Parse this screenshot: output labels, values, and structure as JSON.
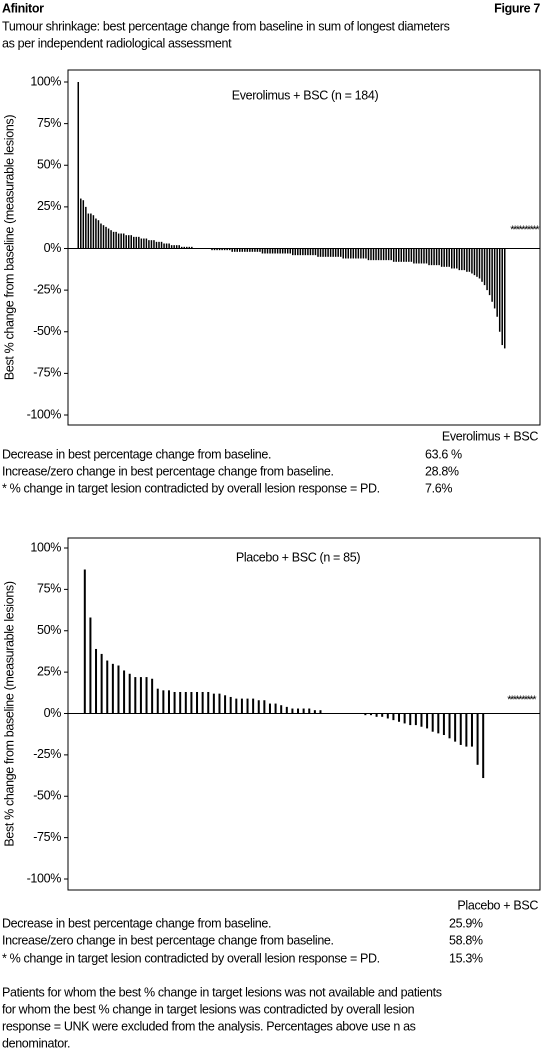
{
  "header": {
    "left": "Afinitor",
    "right": "Figure 7"
  },
  "title": [
    "Tumour shrinkage: best percentage change from baseline in sum of longest diameters",
    "as per independent radiological assessment"
  ],
  "chart_data": [
    {
      "type": "bar",
      "title": "Everolimus + BSC (n = 184)",
      "y_label": "Best % change from baseline (measurable lesions)",
      "ylim": [
        -100,
        100
      ],
      "yticks": [
        {
          "value": 100,
          "label": "100%"
        },
        {
          "value": 75,
          "label": "75%"
        },
        {
          "value": 50,
          "label": "50%"
        },
        {
          "value": 25,
          "label": "25%"
        },
        {
          "value": 0,
          "label": "0%"
        },
        {
          "value": -25,
          "label": "-25%"
        },
        {
          "value": -50,
          "label": "-50%"
        },
        {
          "value": -75,
          "label": "-75%"
        },
        {
          "value": -100,
          "label": "-100%"
        }
      ],
      "color": "#000000",
      "values": [
        100,
        30,
        29,
        25,
        21,
        21,
        20,
        18,
        17,
        15,
        14,
        13,
        12,
        11,
        10,
        10,
        9,
        9,
        9,
        8,
        8,
        8,
        7,
        7,
        7,
        6,
        6,
        6,
        5,
        5,
        5,
        4,
        4,
        4,
        3,
        3,
        3,
        2,
        2,
        2,
        2,
        1,
        1,
        1,
        1,
        1,
        0,
        0,
        0,
        0,
        0,
        0,
        0,
        -1,
        -1,
        -1,
        -1,
        -1,
        -1,
        -1,
        -1,
        -2,
        -2,
        -2,
        -2,
        -2,
        -2,
        -2,
        -2,
        -2,
        -2,
        -2,
        -2,
        -3,
        -3,
        -3,
        -3,
        -3,
        -3,
        -3,
        -3,
        -3,
        -3,
        -3,
        -3,
        -4,
        -4,
        -4,
        -4,
        -4,
        -4,
        -4,
        -4,
        -4,
        -4,
        -5,
        -5,
        -5,
        -5,
        -5,
        -5,
        -5,
        -5,
        -5,
        -5,
        -6,
        -6,
        -6,
        -6,
        -6,
        -6,
        -6,
        -6,
        -6,
        -6,
        -7,
        -7,
        -7,
        -7,
        -7,
        -7,
        -7,
        -7,
        -7,
        -7,
        -8,
        -8,
        -8,
        -8,
        -8,
        -8,
        -8,
        -8,
        -9,
        -9,
        -9,
        -9,
        -9,
        -9,
        -10,
        -10,
        -10,
        -10,
        -10,
        -11,
        -11,
        -11,
        -11,
        -12,
        -12,
        -12,
        -13,
        -13,
        -13,
        -14,
        -14,
        -15,
        -16,
        -17,
        -18,
        -20,
        -22,
        -25,
        -28,
        -32,
        -36,
        -41,
        -50,
        -58,
        -60
      ],
      "pd_label": "**********",
      "pd_value": 13
    },
    {
      "type": "bar",
      "title": "Placebo + BSC (n = 85)",
      "y_label": "Best % change from baseline (measurable lesions)",
      "ylim": [
        -100,
        100
      ],
      "yticks": [
        {
          "value": 100,
          "label": "100%"
        },
        {
          "value": 75,
          "label": "75%"
        },
        {
          "value": 50,
          "label": "50%"
        },
        {
          "value": 25,
          "label": "25%"
        },
        {
          "value": 0,
          "label": "0%"
        },
        {
          "value": -25,
          "label": "-25%"
        },
        {
          "value": -50,
          "label": "-50%"
        },
        {
          "value": -75,
          "label": "-75%"
        },
        {
          "value": -100,
          "label": "-100%"
        }
      ],
      "color": "#000000",
      "values": [
        87,
        58,
        39,
        36,
        32,
        30,
        29,
        26,
        24,
        22,
        22,
        22,
        21,
        15,
        14,
        14,
        13,
        13,
        13,
        13,
        13,
        13,
        13,
        12,
        12,
        11,
        10,
        9,
        9,
        9,
        9,
        8,
        8,
        6,
        6,
        5,
        4,
        3,
        3,
        3,
        3,
        2,
        2,
        0,
        0,
        0,
        0,
        0,
        0,
        0,
        -1,
        -1,
        -2,
        -2,
        -3,
        -4,
        -5,
        -6,
        -7,
        -7,
        -8,
        -9,
        -11,
        -12,
        -13,
        -15,
        -17,
        -19,
        -20,
        -20,
        -31,
        -39
      ],
      "pd_label": "**********",
      "pd_value": 10
    }
  ],
  "summaries": [
    {
      "heading": "Everolimus + BSC",
      "rows": [
        [
          "Decrease in best percentage change from baseline.",
          "63.6 %"
        ],
        [
          "Increase/zero change in best percentage change from baseline.",
          "28.8%"
        ],
        [
          "* % change in target lesion contradicted by overall lesion response = PD.",
          "7.6%"
        ]
      ]
    },
    {
      "heading": "Placebo + BSC",
      "rows": [
        [
          "Decrease in best percentage change from baseline.",
          "25.9%"
        ],
        [
          "Increase/zero change in best percentage change from baseline.",
          "58.8%"
        ],
        [
          "* % change in target lesion contradicted by overall lesion response = PD.",
          "15.3%"
        ]
      ]
    }
  ],
  "footnote": [
    "Patients for whom the best % change in target lesions was not available and patients",
    "for whom the best % change in target lesions was contradicted by overall lesion",
    "response = UNK were excluded from the analysis. Percentages above use n as",
    "denominator."
  ]
}
